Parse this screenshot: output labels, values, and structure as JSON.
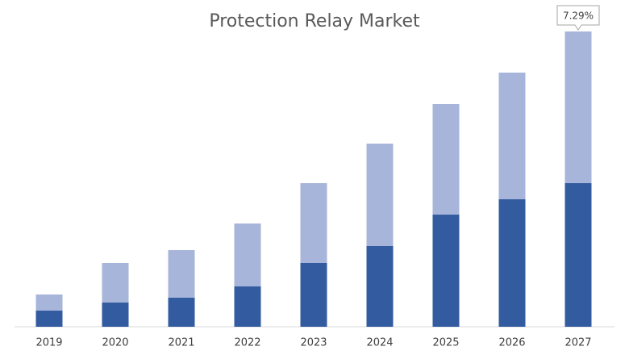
{
  "chart_data": {
    "type": "stacked-bar",
    "title": "Protection Relay Market",
    "annotation": "7.29%",
    "categories": [
      "2019",
      "2020",
      "2021",
      "2022",
      "2023",
      "2024",
      "2025",
      "2026",
      "2027"
    ],
    "series": [
      {
        "color": "#335ca0",
        "values": [
          20,
          30,
          36,
          50,
          79,
          100,
          139,
          158,
          178
        ]
      },
      {
        "color": "#a8b5da",
        "values": [
          20,
          49,
          59,
          78,
          99,
          127,
          137,
          157,
          188
        ]
      }
    ],
    "ylim": [
      0,
      370
    ]
  }
}
